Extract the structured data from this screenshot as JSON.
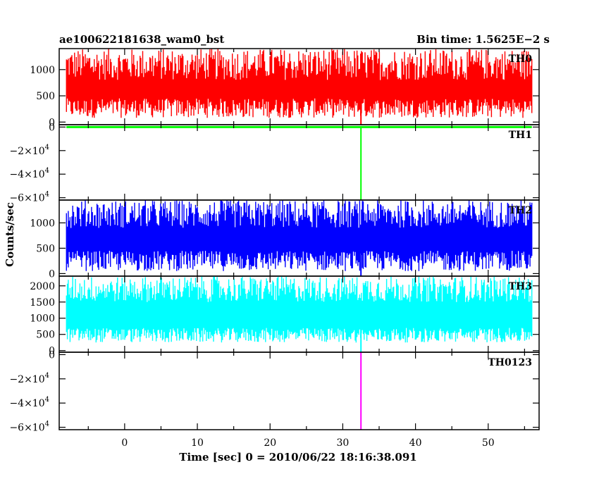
{
  "chart_data": {
    "type": "line",
    "title_left": "ae100622181638_wam0_bst",
    "title_right": "Bin time: 1.5625E−2 s",
    "xlabel": "Time [sec] 0 = 2010/06/22 18:16:38.091",
    "ylabel": "Counts/sec",
    "xlim": [
      -9,
      57
    ],
    "x_ticks": [
      "0",
      "10",
      "20",
      "30",
      "40",
      "50"
    ],
    "x_tick_values": [
      0,
      10,
      20,
      30,
      40,
      50
    ],
    "data_x_range": [
      -8,
      56
    ],
    "spike_x": 32.5,
    "series": [
      {
        "name": "TH0",
        "color": "#ff0000",
        "ylim": [
          -50,
          1400
        ],
        "y_ticks": [
          {
            "v": 0,
            "t": "0"
          },
          {
            "v": 500,
            "t": "500"
          },
          {
            "v": 1000,
            "t": "1000"
          }
        ],
        "mean": 620,
        "low_range": [
          80,
          450
        ],
        "high_range": [
          800,
          1400
        ],
        "spike_value": -50
      },
      {
        "name": "TH1",
        "color": "#00ff00",
        "ylim": [
          -62000,
          2000
        ],
        "y_ticks": [
          {
            "v": 0,
            "t": "0"
          },
          {
            "v": -20000,
            "t": "−2×10",
            "e": "4"
          },
          {
            "v": -40000,
            "t": "−4×10",
            "e": "4"
          },
          {
            "v": -60000,
            "t": "−6×10",
            "e": "4"
          }
        ],
        "mean": 0,
        "low_range": [
          -200,
          -50
        ],
        "high_range": [
          50,
          200
        ],
        "spike_value": -62000
      },
      {
        "name": "TH2",
        "color": "#0000ff",
        "ylim": [
          -50,
          1450
        ],
        "y_ticks": [
          {
            "v": 0,
            "t": "0"
          },
          {
            "v": 500,
            "t": "500"
          },
          {
            "v": 1000,
            "t": "1000"
          }
        ],
        "mean": 700,
        "low_range": [
          50,
          450
        ],
        "high_range": [
          900,
          1450
        ],
        "spike_value": -50
      },
      {
        "name": "TH3",
        "color": "#00ffff",
        "ylim": [
          -50,
          2300
        ],
        "y_ticks": [
          {
            "v": 0,
            "t": "0"
          },
          {
            "v": 500,
            "t": "500"
          },
          {
            "v": 1000,
            "t": "1000"
          },
          {
            "v": 1500,
            "t": "1500"
          },
          {
            "v": 2000,
            "t": "2000"
          }
        ],
        "mean": 1100,
        "low_range": [
          250,
          700
        ],
        "high_range": [
          1500,
          2300
        ],
        "spike_value": -50
      },
      {
        "name": "TH0123",
        "color": "#ff00ff",
        "ylim": [
          -62000,
          2000
        ],
        "y_ticks": [
          {
            "v": 0,
            "t": "0"
          },
          {
            "v": -20000,
            "t": "−2×10",
            "e": "4"
          },
          {
            "v": -40000,
            "t": "−4×10",
            "e": "4"
          },
          {
            "v": -60000,
            "t": "−6×10",
            "e": "4"
          }
        ],
        "mean": 3000,
        "low_range": [
          2500,
          2900
        ],
        "high_range": [
          3100,
          3500
        ],
        "spike_value": -62000
      }
    ]
  }
}
